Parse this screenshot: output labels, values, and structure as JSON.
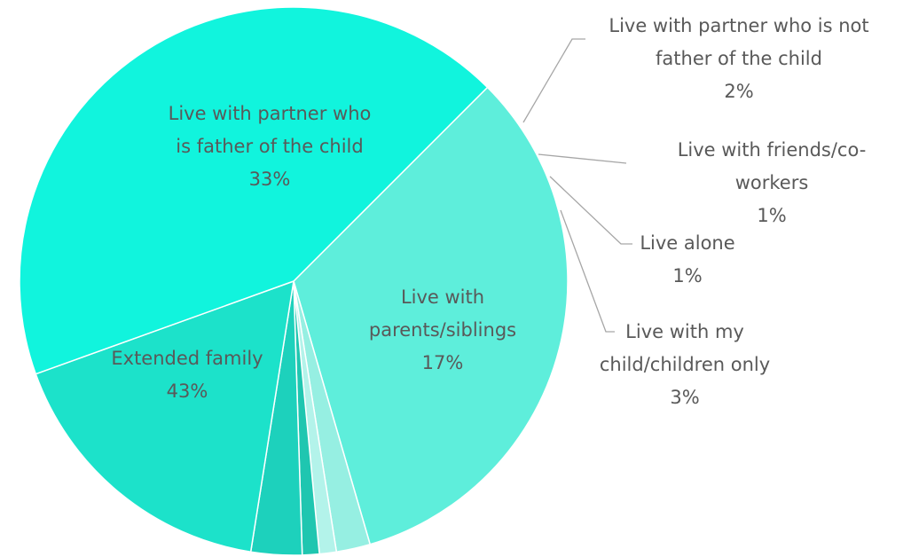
{
  "chart_data": {
    "type": "pie",
    "title": "",
    "slices": [
      {
        "label": "Live with partner who is father of the child",
        "label_lines": [
          "Live with partner who",
          "is father of the child"
        ],
        "value": 33,
        "value_label": "33%",
        "color": "#5eeedb"
      },
      {
        "label": "Live with partner who is not father of the child",
        "label_lines": [
          "Live with partner who is not",
          "father of the child"
        ],
        "value": 2,
        "value_label": "2%",
        "color": "#96efe2"
      },
      {
        "label": "Live with friends/co-workers",
        "label_lines": [
          "Live with friends/co-",
          "workers"
        ],
        "value": 1,
        "value_label": "1%",
        "color": "#b3f3ea"
      },
      {
        "label": "Live alone",
        "label_lines": [
          "Live alone"
        ],
        "value": 1,
        "value_label": "1%",
        "color": "#1fc6b0"
      },
      {
        "label": "Live with my child/children only",
        "label_lines": [
          "Live with my",
          "child/children only"
        ],
        "value": 3,
        "value_label": "3%",
        "color": "#1dd1bc"
      },
      {
        "label": "Live with parents/siblings",
        "label_lines": [
          "Live with",
          "parents/siblings"
        ],
        "value": 17,
        "value_label": "17%",
        "color": "#1ce2ca"
      },
      {
        "label": "Extended family",
        "label_lines": [
          "Extended family"
        ],
        "value": 43,
        "value_label": "43%",
        "color": "#11f4dd"
      }
    ]
  }
}
